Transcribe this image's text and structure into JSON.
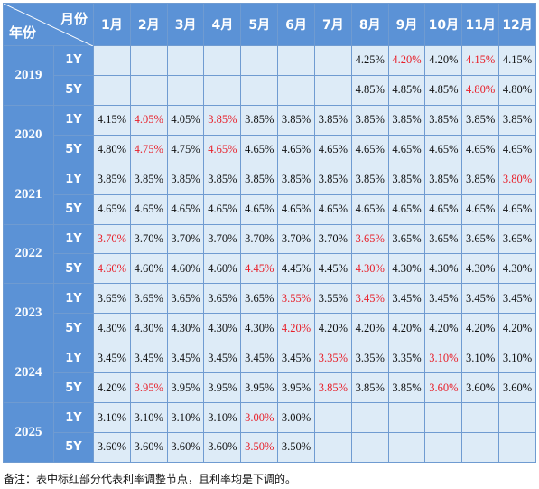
{
  "header": {
    "corner_month": "月份",
    "corner_year": "年份"
  },
  "months": [
    "1月",
    "2月",
    "3月",
    "4月",
    "5月",
    "6月",
    "7月",
    "8月",
    "9月",
    "10月",
    "11月",
    "12月"
  ],
  "years": [
    {
      "year": "2019",
      "rows": [
        {
          "term": "1Y",
          "values": [
            "",
            "",
            "",
            "",
            "",
            "",
            "",
            "4.25%",
            "4.20%",
            "4.20%",
            "4.15%",
            "4.15%"
          ],
          "red": [
            8,
            10
          ]
        },
        {
          "term": "5Y",
          "values": [
            "",
            "",
            "",
            "",
            "",
            "",
            "",
            "4.85%",
            "4.85%",
            "4.85%",
            "4.80%",
            "4.80%"
          ],
          "red": [
            10
          ]
        }
      ]
    },
    {
      "year": "2020",
      "rows": [
        {
          "term": "1Y",
          "values": [
            "4.15%",
            "4.05%",
            "4.05%",
            "3.85%",
            "3.85%",
            "3.85%",
            "3.85%",
            "3.85%",
            "3.85%",
            "3.85%",
            "3.85%",
            "3.85%"
          ],
          "red": [
            1,
            3
          ]
        },
        {
          "term": "5Y",
          "values": [
            "4.80%",
            "4.75%",
            "4.75%",
            "4.65%",
            "4.65%",
            "4.65%",
            "4.65%",
            "4.65%",
            "4.65%",
            "4.65%",
            "4.65%",
            "4.65%"
          ],
          "red": [
            1,
            3
          ]
        }
      ]
    },
    {
      "year": "2021",
      "rows": [
        {
          "term": "1Y",
          "values": [
            "3.85%",
            "3.85%",
            "3.85%",
            "3.85%",
            "3.85%",
            "3.85%",
            "3.85%",
            "3.85%",
            "3.85%",
            "3.85%",
            "3.85%",
            "3.80%"
          ],
          "red": [
            11
          ]
        },
        {
          "term": "5Y",
          "values": [
            "4.65%",
            "4.65%",
            "4.65%",
            "4.65%",
            "4.65%",
            "4.65%",
            "4.65%",
            "4.65%",
            "4.65%",
            "4.65%",
            "4.65%",
            "4.65%"
          ],
          "red": []
        }
      ]
    },
    {
      "year": "2022",
      "rows": [
        {
          "term": "1Y",
          "values": [
            "3.70%",
            "3.70%",
            "3.70%",
            "3.70%",
            "3.70%",
            "3.70%",
            "3.70%",
            "3.65%",
            "3.65%",
            "3.65%",
            "3.65%",
            "3.65%"
          ],
          "red": [
            0,
            7
          ]
        },
        {
          "term": "5Y",
          "values": [
            "4.60%",
            "4.60%",
            "4.60%",
            "4.60%",
            "4.45%",
            "4.45%",
            "4.45%",
            "4.30%",
            "4.30%",
            "4.30%",
            "4.30%",
            "4.30%"
          ],
          "red": [
            0,
            4,
            7
          ]
        }
      ]
    },
    {
      "year": "2023",
      "rows": [
        {
          "term": "1Y",
          "values": [
            "3.65%",
            "3.65%",
            "3.65%",
            "3.65%",
            "3.65%",
            "3.55%",
            "3.55%",
            "3.45%",
            "3.45%",
            "3.45%",
            "3.45%",
            "3.45%"
          ],
          "red": [
            5,
            7
          ]
        },
        {
          "term": "5Y",
          "values": [
            "4.30%",
            "4.30%",
            "4.30%",
            "4.30%",
            "4.30%",
            "4.20%",
            "4.20%",
            "4.20%",
            "4.20%",
            "4.20%",
            "4.20%",
            "4.20%"
          ],
          "red": [
            5
          ]
        }
      ]
    },
    {
      "year": "2024",
      "rows": [
        {
          "term": "1Y",
          "values": [
            "3.45%",
            "3.45%",
            "3.45%",
            "3.45%",
            "3.45%",
            "3.45%",
            "3.35%",
            "3.35%",
            "3.35%",
            "3.10%",
            "3.10%",
            "3.10%"
          ],
          "red": [
            6,
            9
          ]
        },
        {
          "term": "5Y",
          "values": [
            "4.20%",
            "3.95%",
            "3.95%",
            "3.95%",
            "3.95%",
            "3.95%",
            "3.85%",
            "3.85%",
            "3.85%",
            "3.60%",
            "3.60%",
            "3.60%"
          ],
          "red": [
            1,
            6,
            9
          ]
        }
      ]
    },
    {
      "year": "2025",
      "rows": [
        {
          "term": "1Y",
          "values": [
            "3.10%",
            "3.10%",
            "3.10%",
            "3.10%",
            "3.00%",
            "3.00%",
            "",
            "",
            "",
            "",
            "",
            ""
          ],
          "red": [
            4
          ]
        },
        {
          "term": "5Y",
          "values": [
            "3.60%",
            "3.60%",
            "3.60%",
            "3.60%",
            "3.50%",
            "3.50%",
            "",
            "",
            "",
            "",
            "",
            ""
          ],
          "red": [
            4
          ]
        }
      ]
    }
  ],
  "colors": {
    "header_bg": "#5b92d6",
    "cell_bg": "#ddebf7",
    "highlight_text": "#e8202a",
    "border": "#6f9bd1"
  },
  "note": "备注：表中标红部分代表利率调整节点，且利率均是下调的。"
}
